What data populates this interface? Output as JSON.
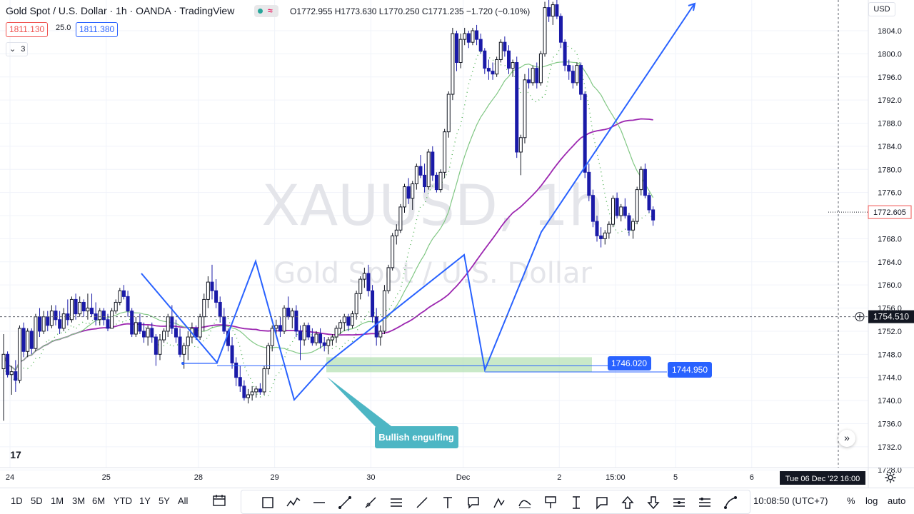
{
  "header": {
    "symbol_title": "Gold Spot / U.S. Dollar · 1h · OANDA · TradingView",
    "ohlc": "O1772.955 H1773.630 L1770.250 C1771.235 −1.720 (−0.10%)",
    "sell_price": "1811.130",
    "spread": "25.0",
    "buy_price": "1811.380",
    "indicators_count": "3",
    "currency": "USD"
  },
  "watermark": {
    "symbol": "XAUUSD, 1h",
    "name": "Gold Spot / U.S. Dollar"
  },
  "chart_data": {
    "type": "candlestick",
    "price_axis": {
      "ticks": [
        1804,
        1800,
        1796,
        1792,
        1788,
        1784,
        1780,
        1776,
        1772,
        1768,
        1764,
        1760,
        1756,
        1752,
        1748,
        1744,
        1740,
        1736,
        1732,
        1728
      ],
      "range": [
        1727,
        1809
      ]
    },
    "time_axis": {
      "labels": [
        {
          "text": "24",
          "x_index": 0
        },
        {
          "text": "25",
          "x_index": 24
        },
        {
          "text": "28",
          "x_index": 47
        },
        {
          "text": "29",
          "x_index": 66
        },
        {
          "text": "30",
          "x_index": 90
        },
        {
          "text": "Dec",
          "x_index": 113
        },
        {
          "text": "2",
          "x_index": 137
        },
        {
          "text": "15:00",
          "x_index": 151
        },
        {
          "text": "5",
          "x_index": 166
        },
        {
          "text": "6",
          "x_index": 185
        }
      ]
    },
    "candles": [
      [
        1745.5,
        1751.5,
        1736.5,
        1748.0
      ],
      [
        1748.0,
        1748.5,
        1744.0,
        1744.5
      ],
      [
        1744.5,
        1746.0,
        1741.0,
        1745.0
      ],
      [
        1745.0,
        1747.0,
        1741.5,
        1743.5
      ],
      [
        1743.5,
        1753.0,
        1743.0,
        1752.5
      ],
      [
        1752.5,
        1753.5,
        1747.5,
        1748.5
      ],
      [
        1748.5,
        1752.5,
        1747.5,
        1752.0
      ],
      [
        1752.0,
        1752.5,
        1748.0,
        1749.0
      ],
      [
        1749.0,
        1755.0,
        1748.5,
        1754.5
      ],
      [
        1754.5,
        1756.0,
        1751.0,
        1752.0
      ],
      [
        1752.0,
        1755.5,
        1751.5,
        1754.5
      ],
      [
        1754.5,
        1755.5,
        1752.0,
        1753.0
      ],
      [
        1753.0,
        1756.5,
        1752.5,
        1755.5
      ],
      [
        1755.5,
        1756.5,
        1753.0,
        1754.0
      ],
      [
        1754.0,
        1755.5,
        1751.5,
        1752.5
      ],
      [
        1752.5,
        1756.0,
        1752.0,
        1755.0
      ],
      [
        1755.0,
        1757.5,
        1753.0,
        1754.0
      ],
      [
        1754.0,
        1758.0,
        1753.5,
        1757.5
      ],
      [
        1757.5,
        1758.5,
        1754.0,
        1755.0
      ],
      [
        1755.0,
        1758.0,
        1754.5,
        1757.0
      ],
      [
        1757.0,
        1757.5,
        1754.5,
        1755.5
      ],
      [
        1755.5,
        1758.5,
        1754.0,
        1756.0
      ],
      [
        1756.0,
        1758.5,
        1754.5,
        1755.0
      ],
      [
        1755.0,
        1757.0,
        1753.0,
        1754.0
      ],
      [
        1754.0,
        1756.0,
        1753.0,
        1755.5
      ],
      [
        1755.5,
        1756.0,
        1753.0,
        1754.0
      ],
      [
        1754.0,
        1755.0,
        1752.0,
        1752.5
      ],
      [
        1752.5,
        1756.0,
        1752.5,
        1755.5
      ],
      [
        1755.5,
        1757.5,
        1755.0,
        1757.0
      ],
      [
        1757.0,
        1759.5,
        1756.5,
        1759.0
      ],
      [
        1759.0,
        1760.0,
        1757.5,
        1758.0
      ],
      [
        1758.0,
        1759.0,
        1754.5,
        1755.5
      ],
      [
        1755.5,
        1756.0,
        1751.0,
        1751.5
      ],
      [
        1751.5,
        1754.5,
        1751.0,
        1753.5
      ],
      [
        1753.5,
        1755.0,
        1751.5,
        1752.0
      ],
      [
        1752.0,
        1753.5,
        1750.0,
        1751.0
      ],
      [
        1751.0,
        1753.0,
        1749.5,
        1752.5
      ],
      [
        1752.5,
        1753.5,
        1750.0,
        1751.0
      ],
      [
        1751.0,
        1751.5,
        1746.0,
        1748.0
      ],
      [
        1748.0,
        1751.5,
        1747.0,
        1750.5
      ],
      [
        1750.5,
        1752.5,
        1750.0,
        1752.0
      ],
      [
        1752.0,
        1755.0,
        1751.0,
        1754.5
      ],
      [
        1754.5,
        1756.5,
        1751.5,
        1752.5
      ],
      [
        1752.5,
        1754.0,
        1750.0,
        1751.0
      ],
      [
        1751.0,
        1752.5,
        1747.5,
        1748.0
      ],
      [
        1748.0,
        1750.0,
        1745.5,
        1749.5
      ],
      [
        1749.5,
        1752.0,
        1747.0,
        1751.0
      ],
      [
        1751.0,
        1753.5,
        1750.0,
        1752.5
      ],
      [
        1752.5,
        1753.0,
        1750.5,
        1751.0
      ],
      [
        1751.0,
        1755.0,
        1750.5,
        1754.5
      ],
      [
        1754.5,
        1758.5,
        1752.0,
        1757.5
      ],
      [
        1757.5,
        1761.5,
        1756.0,
        1760.5
      ],
      [
        1760.5,
        1763.5,
        1757.5,
        1759.0
      ],
      [
        1759.0,
        1761.0,
        1756.0,
        1757.0
      ],
      [
        1757.0,
        1758.0,
        1753.5,
        1754.5
      ],
      [
        1754.5,
        1756.0,
        1751.5,
        1752.0
      ],
      [
        1752.0,
        1752.5,
        1748.5,
        1749.5
      ],
      [
        1749.5,
        1751.0,
        1745.5,
        1746.5
      ],
      [
        1746.5,
        1747.5,
        1742.5,
        1744.0
      ],
      [
        1744.0,
        1746.0,
        1741.5,
        1742.5
      ],
      [
        1742.5,
        1743.5,
        1740.0,
        1740.5
      ],
      [
        1740.5,
        1742.0,
        1739.5,
        1741.0
      ],
      [
        1741.0,
        1742.5,
        1740.0,
        1741.5
      ],
      [
        1741.5,
        1742.5,
        1740.5,
        1742.0
      ],
      [
        1742.0,
        1743.0,
        1741.0,
        1741.5
      ],
      [
        1741.5,
        1746.0,
        1741.0,
        1745.5
      ],
      [
        1745.5,
        1750.0,
        1744.5,
        1749.5
      ],
      [
        1749.5,
        1753.0,
        1748.5,
        1752.5
      ],
      [
        1752.5,
        1754.0,
        1751.5,
        1753.0
      ],
      [
        1753.0,
        1754.5,
        1751.0,
        1752.0
      ],
      [
        1752.0,
        1756.5,
        1751.5,
        1756.0
      ],
      [
        1756.0,
        1758.0,
        1754.0,
        1754.5
      ],
      [
        1754.5,
        1756.0,
        1752.5,
        1755.5
      ],
      [
        1755.5,
        1756.5,
        1751.0,
        1752.0
      ],
      [
        1752.0,
        1753.0,
        1747.0,
        1750.5
      ],
      [
        1750.5,
        1753.5,
        1749.5,
        1753.0
      ],
      [
        1753.0,
        1753.5,
        1750.5,
        1751.0
      ],
      [
        1751.0,
        1752.5,
        1749.5,
        1750.0
      ],
      [
        1750.0,
        1752.0,
        1749.5,
        1751.5
      ],
      [
        1751.5,
        1752.5,
        1749.0,
        1750.0
      ],
      [
        1750.0,
        1751.0,
        1748.5,
        1749.5
      ],
      [
        1749.5,
        1751.0,
        1748.0,
        1750.5
      ],
      [
        1750.5,
        1751.5,
        1749.5,
        1751.0
      ],
      [
        1751.0,
        1753.0,
        1750.0,
        1752.5
      ],
      [
        1752.5,
        1754.0,
        1751.5,
        1753.5
      ],
      [
        1753.5,
        1755.0,
        1752.0,
        1754.5
      ],
      [
        1754.5,
        1755.0,
        1752.0,
        1753.0
      ],
      [
        1753.0,
        1755.5,
        1752.5,
        1755.0
      ],
      [
        1755.0,
        1759.0,
        1754.0,
        1758.5
      ],
      [
        1758.5,
        1761.5,
        1757.5,
        1761.0
      ],
      [
        1761.0,
        1763.0,
        1759.5,
        1762.0
      ],
      [
        1762.0,
        1763.5,
        1758.0,
        1759.0
      ],
      [
        1759.0,
        1760.0,
        1753.5,
        1754.5
      ],
      [
        1754.5,
        1756.0,
        1749.5,
        1751.0
      ],
      [
        1751.0,
        1753.0,
        1749.5,
        1752.0
      ],
      [
        1752.0,
        1760.0,
        1751.5,
        1759.0
      ],
      [
        1759.0,
        1763.5,
        1758.5,
        1763.0
      ],
      [
        1763.0,
        1769.0,
        1762.5,
        1768.5
      ],
      [
        1768.5,
        1770.5,
        1767.0,
        1769.5
      ],
      [
        1769.5,
        1774.0,
        1769.0,
        1773.5
      ],
      [
        1773.5,
        1777.5,
        1772.5,
        1777.0
      ],
      [
        1777.0,
        1778.5,
        1774.0,
        1775.0
      ],
      [
        1775.0,
        1778.0,
        1773.0,
        1777.5
      ],
      [
        1777.5,
        1781.0,
        1776.5,
        1780.5
      ],
      [
        1780.5,
        1782.5,
        1778.5,
        1779.0
      ],
      [
        1779.0,
        1781.0,
        1776.0,
        1777.0
      ],
      [
        1777.0,
        1783.5,
        1776.5,
        1783.0
      ],
      [
        1783.0,
        1784.0,
        1778.0,
        1779.0
      ],
      [
        1779.0,
        1779.5,
        1776.0,
        1776.5
      ],
      [
        1776.5,
        1780.0,
        1776.0,
        1779.5
      ],
      [
        1779.5,
        1787.0,
        1778.5,
        1786.5
      ],
      [
        1786.5,
        1793.5,
        1785.5,
        1793.0
      ],
      [
        1793.0,
        1804.5,
        1792.0,
        1803.5
      ],
      [
        1803.5,
        1804.0,
        1797.0,
        1798.5
      ],
      [
        1798.5,
        1803.5,
        1797.5,
        1802.5
      ],
      [
        1802.5,
        1804.5,
        1801.5,
        1803.5
      ],
      [
        1803.5,
        1804.0,
        1801.0,
        1802.0
      ],
      [
        1802.0,
        1804.5,
        1801.5,
        1804.0
      ],
      [
        1804.0,
        1805.0,
        1801.5,
        1802.5
      ],
      [
        1802.5,
        1803.5,
        1800.0,
        1800.5
      ],
      [
        1800.5,
        1801.0,
        1796.5,
        1797.5
      ],
      [
        1797.5,
        1799.0,
        1795.5,
        1797.0
      ],
      [
        1797.0,
        1798.5,
        1795.5,
        1796.5
      ],
      [
        1796.5,
        1799.5,
        1796.0,
        1799.0
      ],
      [
        1799.0,
        1802.5,
        1798.5,
        1802.0
      ],
      [
        1802.0,
        1803.0,
        1799.5,
        1800.5
      ],
      [
        1800.5,
        1801.5,
        1796.5,
        1797.5
      ],
      [
        1797.5,
        1799.0,
        1796.0,
        1798.5
      ],
      [
        1798.5,
        1799.5,
        1782.0,
        1783.0
      ],
      [
        1783.0,
        1786.0,
        1779.0,
        1785.5
      ],
      [
        1785.5,
        1796.5,
        1784.5,
        1795.5
      ],
      [
        1795.5,
        1797.5,
        1794.0,
        1795.0
      ],
      [
        1795.0,
        1798.0,
        1794.5,
        1797.5
      ],
      [
        1797.5,
        1798.5,
        1794.0,
        1795.0
      ],
      [
        1795.0,
        1800.5,
        1794.5,
        1800.0
      ],
      [
        1800.0,
        1809.0,
        1799.5,
        1808.0
      ],
      [
        1808.0,
        1809.5,
        1805.5,
        1806.5
      ],
      [
        1806.5,
        1809.0,
        1805.0,
        1808.5
      ],
      [
        1808.5,
        1809.5,
        1806.0,
        1806.5
      ],
      [
        1806.5,
        1807.0,
        1801.0,
        1802.0
      ],
      [
        1802.0,
        1802.5,
        1797.0,
        1798.0
      ],
      [
        1798.0,
        1799.0,
        1795.5,
        1797.0
      ],
      [
        1797.0,
        1798.0,
        1794.0,
        1795.0
      ],
      [
        1795.0,
        1798.5,
        1794.5,
        1798.0
      ],
      [
        1798.0,
        1798.5,
        1792.0,
        1793.0
      ],
      [
        1793.0,
        1793.5,
        1778.5,
        1779.5
      ],
      [
        1779.5,
        1781.0,
        1774.5,
        1775.5
      ],
      [
        1775.5,
        1776.5,
        1770.0,
        1771.0
      ],
      [
        1771.0,
        1772.0,
        1767.5,
        1768.5
      ],
      [
        1768.5,
        1770.0,
        1766.5,
        1768.0
      ],
      [
        1768.0,
        1769.5,
        1767.0,
        1769.0
      ],
      [
        1769.0,
        1771.0,
        1768.0,
        1770.5
      ],
      [
        1770.5,
        1775.5,
        1770.0,
        1775.0
      ],
      [
        1775.0,
        1776.0,
        1771.5,
        1772.0
      ],
      [
        1772.0,
        1774.0,
        1771.0,
        1773.5
      ],
      [
        1773.5,
        1775.0,
        1771.5,
        1772.0
      ],
      [
        1772.0,
        1772.5,
        1768.5,
        1769.5
      ],
      [
        1769.5,
        1771.5,
        1768.0,
        1771.0
      ],
      [
        1771.0,
        1777.0,
        1770.5,
        1776.5
      ],
      [
        1776.5,
        1780.5,
        1775.5,
        1780.0
      ],
      [
        1780.0,
        1781.0,
        1775.0,
        1775.5
      ],
      [
        1775.5,
        1776.0,
        1772.5,
        1773.0
      ],
      [
        1773.0,
        1773.6,
        1770.25,
        1771.235
      ]
    ],
    "current_price": "1772.605",
    "crosshair_price": "1754.510",
    "crosshair_time": "Tue 06 Dec '22   16:00",
    "horizontal_levels": [
      {
        "price": 1746.02,
        "label": "1746.020"
      },
      {
        "price": 1744.95,
        "label": "1744.950"
      }
    ],
    "annotation": {
      "text": "Bullish engulfing"
    }
  },
  "toolbar": {
    "timeframes": [
      "1D",
      "5D",
      "1M",
      "3M",
      "6M",
      "YTD",
      "1Y",
      "5Y",
      "All"
    ],
    "clock": "10:08:50 (UTC+7)",
    "percent": "%",
    "log": "log",
    "auto": "auto"
  },
  "colors": {
    "bull": "#131722",
    "bear": "#1a1aa8",
    "ma_slow": "#9c27b0",
    "ma_fast": "#81c784",
    "psar": "#4caf50",
    "drawing": "#2962ff",
    "callout": "#4db6c4",
    "zone": "#b7e1b5"
  }
}
